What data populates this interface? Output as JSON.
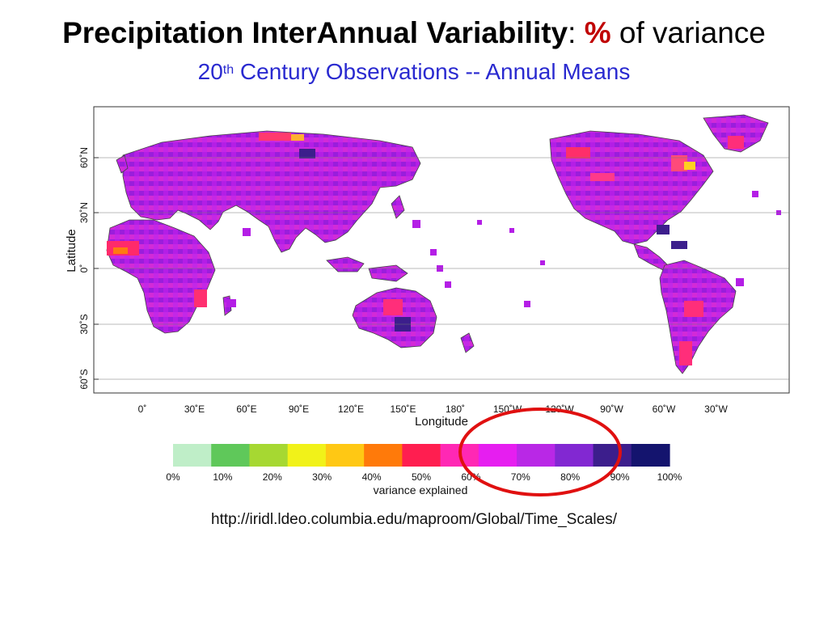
{
  "title": {
    "bold_part": "Precipitation InterAnnual Variability",
    "separator": ":",
    "percent_sign": "%",
    "rest": "of variance"
  },
  "subtitle": {
    "prefix": "20",
    "superscript": "th",
    "rest": " Century Observations -- Annual Means"
  },
  "map": {
    "xlabel": "Longitude",
    "ylabel": "Latitude",
    "x_ticks": [
      "0˚",
      "30˚E",
      "60˚E",
      "90˚E",
      "120˚E",
      "150˚E",
      "180˚",
      "150˚W",
      "120˚W",
      "90˚W",
      "60˚W",
      "30˚W"
    ],
    "y_ticks": [
      "60˚N",
      "30˚N",
      "0˚",
      "30˚S",
      "60˚S"
    ]
  },
  "colorbar": {
    "label": "variance explained",
    "tick_labels": [
      "0%",
      "10%",
      "20%",
      "30%",
      "40%",
      "50%",
      "60%",
      "70%",
      "80%",
      "90%",
      "100%"
    ],
    "colors": [
      "#bfeec8",
      "#5fc85a",
      "#a6d832",
      "#f1f219",
      "#ffc814",
      "#ff7a0a",
      "#ff1e50",
      "#ff28b4",
      "#e61ef0",
      "#b928e6",
      "#8228d2",
      "#3c1e8c",
      "#14146e"
    ]
  },
  "source_url": "http://iridl.ldeo.columbia.edu/maproom/Global/Time_Scales/",
  "colors": {
    "title_text": "#000000",
    "percent_sign": "#c00000",
    "subtitle_text": "#2a2ad0",
    "annotation_circle": "#e01010",
    "land_main": "#b41ee6",
    "land_outline": "#555555"
  }
}
